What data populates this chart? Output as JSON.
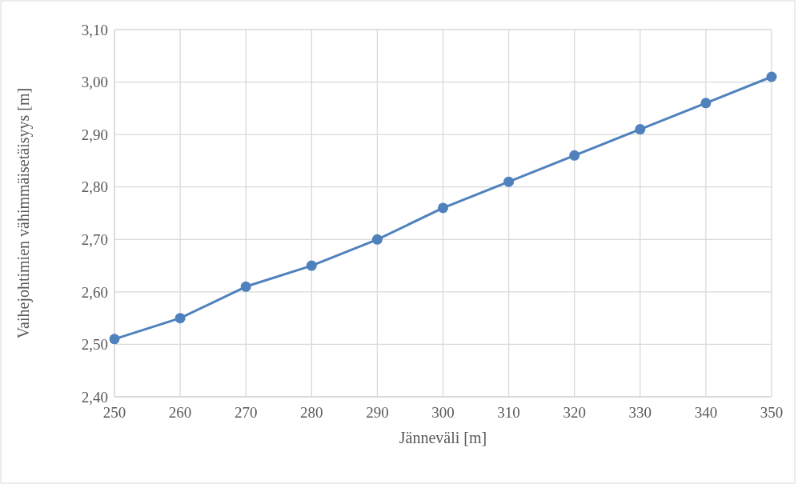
{
  "chart_data": {
    "type": "line",
    "xlabel": "Jänneväli [m]",
    "ylabel": "Vaihejohtimien vähimmäisetäisyys [m]",
    "x": [
      250,
      260,
      270,
      280,
      290,
      300,
      310,
      320,
      330,
      340,
      350
    ],
    "series": [
      {
        "color": "#4f81bd",
        "values": [
          2.51,
          2.55,
          2.61,
          2.65,
          2.7,
          2.76,
          2.81,
          2.86,
          2.91,
          2.96,
          3.01
        ]
      }
    ],
    "xlim": [
      250,
      350
    ],
    "xticks": [
      250,
      260,
      270,
      280,
      290,
      300,
      310,
      320,
      330,
      340,
      350
    ],
    "ylim": [
      2.4,
      3.1
    ],
    "yticks": [
      {
        "value": 2.4,
        "label": "2,40"
      },
      {
        "value": 2.5,
        "label": "2,50"
      },
      {
        "value": 2.6,
        "label": "2,60"
      },
      {
        "value": 2.7,
        "label": "2,70"
      },
      {
        "value": 2.8,
        "label": "2,80"
      },
      {
        "value": 2.9,
        "label": "2,90"
      },
      {
        "value": 3.0,
        "label": "3,00"
      },
      {
        "value": 3.1,
        "label": "3,10"
      }
    ],
    "grid": true,
    "marker": "circle",
    "line_style": "solid"
  }
}
